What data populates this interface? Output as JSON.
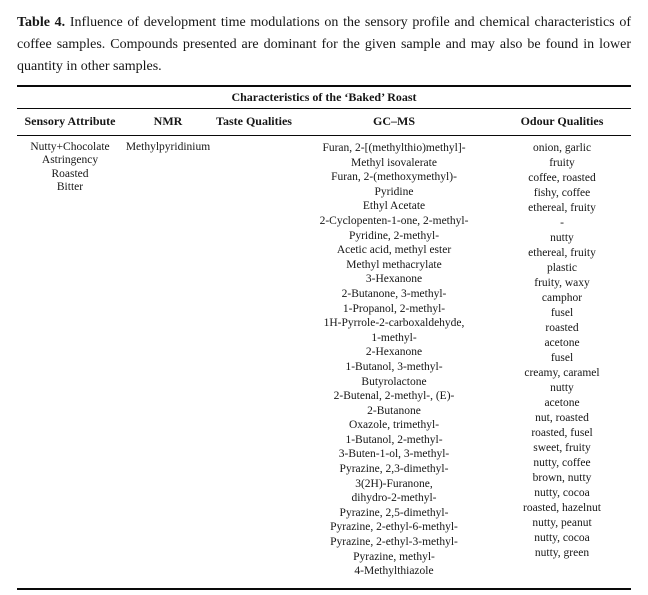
{
  "caption": {
    "label": "Table 4.",
    "text": " Influence of development time modulations on the sensory profile and chemical characteristics of coffee samples. Compounds presented are dominant for the given sample and may also be found in lower quantity in other samples."
  },
  "table": {
    "title": "Characteristics of the ‘Baked’ Roast",
    "columns": {
      "sensory": "Sensory Attribute",
      "nmr": "NMR",
      "taste": "Taste Qualities",
      "gcms": "GC–MS",
      "odour": "Odour Qualities"
    },
    "row": {
      "sensory_attributes": [
        "Nutty+Chocolate",
        "Astringency",
        "Roasted",
        "Bitter"
      ],
      "nmr_compounds": [
        "Methylpyridinium"
      ],
      "taste_qualities": [],
      "gcms_lines": [
        "Furan, 2-[(methylthio)methyl]-",
        "Methyl isovalerate",
        "Furan, 2-(methoxymethyl)-",
        "Pyridine",
        "Ethyl Acetate",
        "2-Cyclopenten-1-one, 2-methyl-",
        "Pyridine, 2-methyl-",
        "Acetic acid, methyl ester",
        "Methyl methacrylate",
        "3-Hexanone",
        "2-Butanone, 3-methyl-",
        "1-Propanol, 2-methyl-",
        "1H-Pyrrole-2-carboxaldehyde,",
        "1-methyl-",
        "2-Hexanone",
        "1-Butanol, 3-methyl-",
        "Butyrolactone",
        "2-Butenal, 2-methyl-, (E)-",
        "2-Butanone",
        "Oxazole, trimethyl-",
        "1-Butanol, 2-methyl-",
        "3-Buten-1-ol, 3-methyl-",
        "Pyrazine, 2,3-dimethyl-",
        "3(2H)-Furanone,",
        "dihydro-2-methyl-",
        "Pyrazine, 2,5-dimethyl-",
        "Pyrazine, 2-ethyl-6-methyl-",
        "Pyrazine, 2-ethyl-3-methyl-",
        "Pyrazine, methyl-",
        "4-Methylthiazole"
      ],
      "odour_qualities": [
        "onion, garlic",
        "fruity",
        "coffee, roasted",
        "fishy, coffee",
        "ethereal, fruity",
        "-",
        "nutty",
        "ethereal, fruity",
        "plastic",
        "fruity, waxy",
        "camphor",
        "fusel",
        "roasted",
        "acetone",
        "fusel",
        "creamy, caramel",
        "nutty",
        "acetone",
        "nut, roasted",
        "roasted, fusel",
        "sweet, fruity",
        "nutty, coffee",
        "brown, nutty",
        "nutty, cocoa",
        "roasted, hazelnut",
        "nutty, peanut",
        "nutty, cocoa",
        "nutty, green"
      ]
    }
  }
}
